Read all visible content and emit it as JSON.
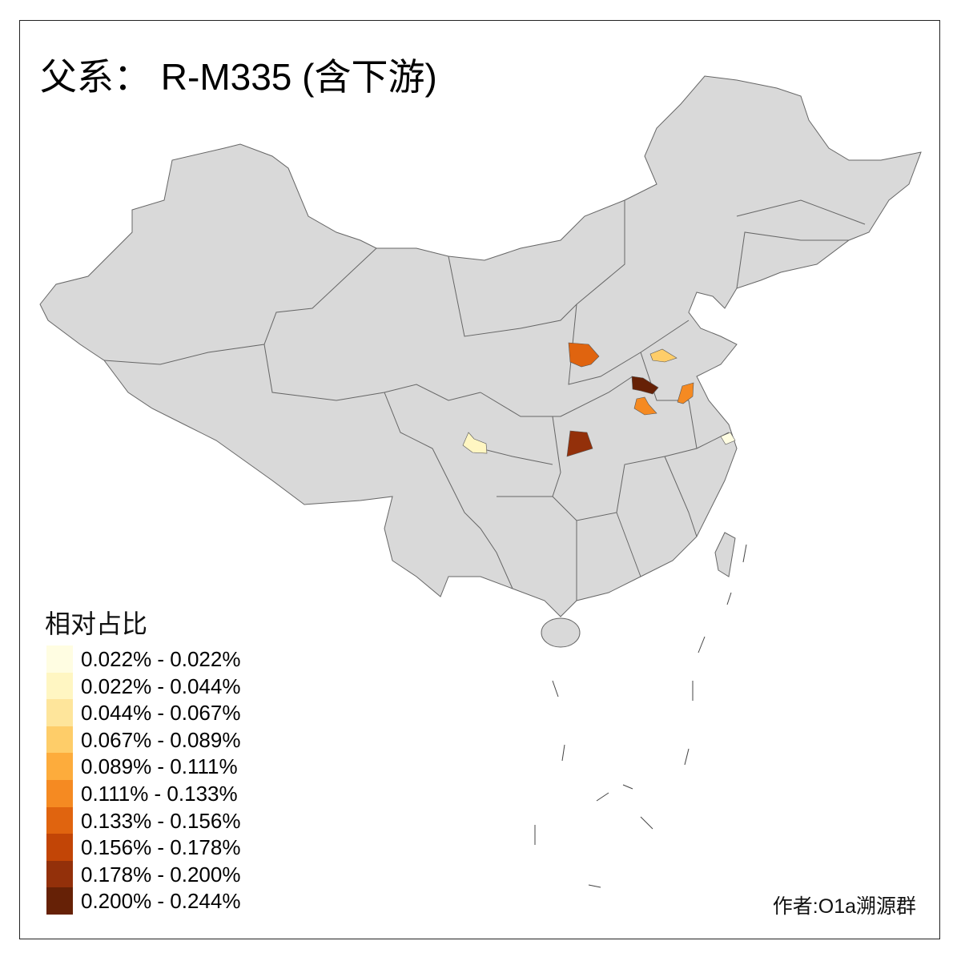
{
  "title": "父系： R-M335 (含下游)",
  "legend": {
    "title": "相对占比",
    "items": [
      {
        "label": "0.022% - 0.022%",
        "color": "#fffde2"
      },
      {
        "label": "0.022% - 0.044%",
        "color": "#fff6c2"
      },
      {
        "label": "0.044% - 0.067%",
        "color": "#fee59b"
      },
      {
        "label": "0.067% - 0.089%",
        "color": "#fecd69"
      },
      {
        "label": "0.089% - 0.111%",
        "color": "#fdac3c"
      },
      {
        "label": "0.111% - 0.133%",
        "color": "#f58a22"
      },
      {
        "label": "0.133% - 0.156%",
        "color": "#e0640f"
      },
      {
        "label": "0.156% - 0.178%",
        "color": "#c24506"
      },
      {
        "label": "0.178% - 0.200%",
        "color": "#93300a"
      },
      {
        "label": "0.200% - 0.244%",
        "color": "#662106"
      }
    ]
  },
  "base_color": "#d9d9d9",
  "highlighted_regions": [
    {
      "class": 6,
      "color": "#e0640f"
    },
    {
      "class": 3,
      "color": "#fecd69"
    },
    {
      "class": 9,
      "color": "#662106"
    },
    {
      "class": 5,
      "color": "#f58a22"
    },
    {
      "class": 5,
      "color": "#f58a22"
    },
    {
      "class": 8,
      "color": "#93300a"
    },
    {
      "class": 1,
      "color": "#fff6c2"
    },
    {
      "class": 0,
      "color": "#fffde2"
    }
  ],
  "author": "作者:O1a溯源群"
}
